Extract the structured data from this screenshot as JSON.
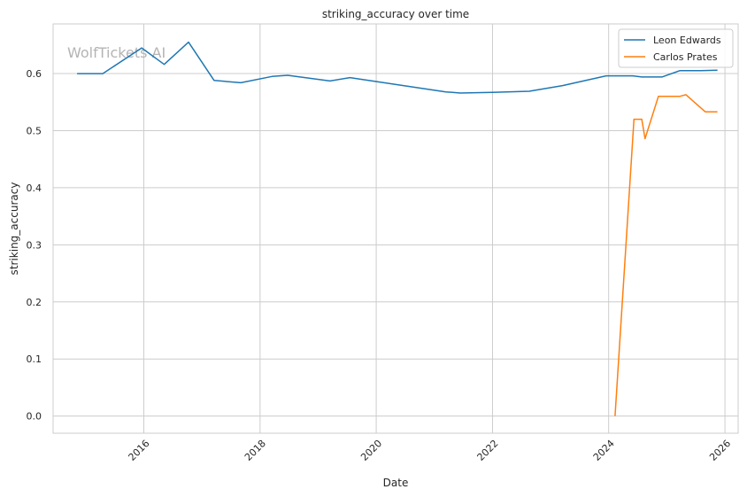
{
  "chart_data": {
    "type": "line",
    "title": "striking_accuracy over time",
    "xlabel": "Date",
    "ylabel": "striking_accuracy",
    "watermark": "WolfTickets AI",
    "xlim": [
      "2014-06-10",
      "2026-03-25"
    ],
    "ylim": [
      -0.03,
      0.687
    ],
    "x_ticks": [
      "2016",
      "2018",
      "2020",
      "2022",
      "2024",
      "2026"
    ],
    "y_ticks": [
      "0.0",
      "0.1",
      "0.2",
      "0.3",
      "0.4",
      "0.5",
      "0.6"
    ],
    "grid": true,
    "legend_position": "top-right",
    "series": [
      {
        "name": "Leon Edwards",
        "color": "#1f77b4",
        "points": [
          {
            "x": "2014-11-08",
            "y": 0.6
          },
          {
            "x": "2015-04-18",
            "y": 0.6
          },
          {
            "x": "2015-12-19",
            "y": 0.645
          },
          {
            "x": "2016-05-08",
            "y": 0.616
          },
          {
            "x": "2016-10-08",
            "y": 0.655
          },
          {
            "x": "2017-03-18",
            "y": 0.588
          },
          {
            "x": "2017-09-02",
            "y": 0.584
          },
          {
            "x": "2018-03-17",
            "y": 0.595
          },
          {
            "x": "2018-06-23",
            "y": 0.597
          },
          {
            "x": "2019-03-16",
            "y": 0.587
          },
          {
            "x": "2019-07-20",
            "y": 0.593
          },
          {
            "x": "2021-03-13",
            "y": 0.568
          },
          {
            "x": "2021-06-12",
            "y": 0.566
          },
          {
            "x": "2022-01-01",
            "y": 0.567
          },
          {
            "x": "2022-08-20",
            "y": 0.569
          },
          {
            "x": "2023-03-18",
            "y": 0.579
          },
          {
            "x": "2023-12-16",
            "y": 0.596
          },
          {
            "x": "2024-06-01",
            "y": 0.596
          },
          {
            "x": "2024-07-27",
            "y": 0.594
          },
          {
            "x": "2024-12-01",
            "y": 0.594
          },
          {
            "x": "2025-03-22",
            "y": 0.605
          },
          {
            "x": "2025-08-01",
            "y": 0.605
          },
          {
            "x": "2025-11-15",
            "y": 0.606
          }
        ]
      },
      {
        "name": "Carlos Prates",
        "color": "#ff7f0e",
        "points": [
          {
            "x": "2024-02-10",
            "y": 0.0
          },
          {
            "x": "2024-06-08",
            "y": 0.52
          },
          {
            "x": "2024-07-27",
            "y": 0.52
          },
          {
            "x": "2024-08-17",
            "y": 0.486
          },
          {
            "x": "2024-11-09",
            "y": 0.56
          },
          {
            "x": "2025-03-22",
            "y": 0.56
          },
          {
            "x": "2025-05-01",
            "y": 0.563
          },
          {
            "x": "2025-08-30",
            "y": 0.533
          },
          {
            "x": "2025-11-15",
            "y": 0.533
          }
        ]
      }
    ]
  }
}
